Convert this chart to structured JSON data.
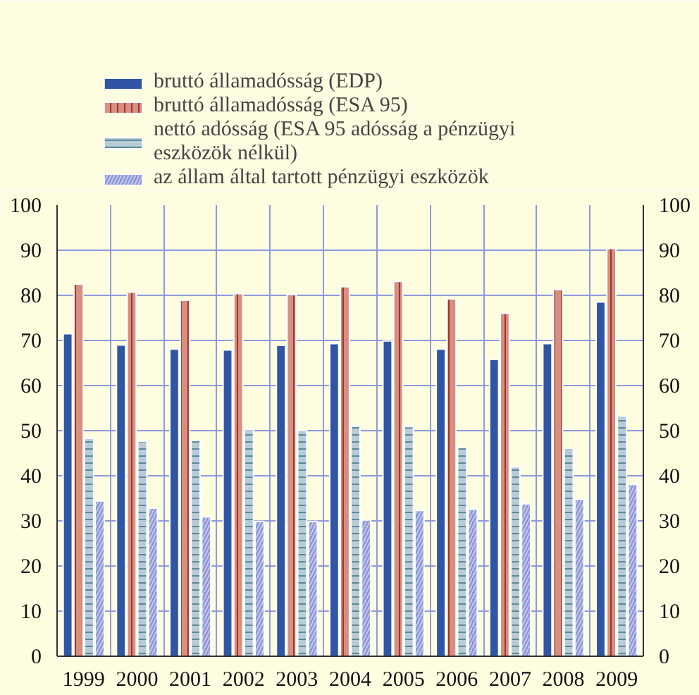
{
  "chart_data": {
    "type": "bar",
    "categories": [
      "1999",
      "2000",
      "2001",
      "2002",
      "2003",
      "2004",
      "2005",
      "2006",
      "2007",
      "2008",
      "2009"
    ],
    "series": [
      {
        "name": "bruttó államadósság (EDP)",
        "color": "#2f55a4",
        "values": [
          71.5,
          69.0,
          68.1,
          67.9,
          68.9,
          69.3,
          69.9,
          68.1,
          65.8,
          69.3,
          78.5
        ]
      },
      {
        "name": "bruttó államadósság (ESA 95)",
        "color": "#d49080",
        "values": [
          82.5,
          80.7,
          78.9,
          80.4,
          80.2,
          81.9,
          83.1,
          79.2,
          76.0,
          81.3,
          90.4
        ]
      },
      {
        "name": "nettó adósság (ESA 95 adósság a pénzügyi eszközök nélkül)",
        "color": "#b8ccd8",
        "values": [
          48.3,
          47.6,
          47.9,
          50.3,
          50.1,
          51.0,
          50.9,
          46.3,
          42.0,
          46.0,
          53.3
        ]
      },
      {
        "name": "az állam által tartott pénzügyi eszközök",
        "color": "#8c96d0",
        "values": [
          34.4,
          32.8,
          30.9,
          29.9,
          29.9,
          30.2,
          32.3,
          32.6,
          33.8,
          34.8,
          38.1
        ]
      }
    ],
    "ylim": [
      0,
      100
    ],
    "yticks": [
      0,
      10,
      20,
      30,
      40,
      50,
      60,
      70,
      80,
      90,
      100
    ],
    "y2lim": [
      0,
      100
    ],
    "y2ticks": [
      0,
      10,
      20,
      30,
      40,
      50,
      60,
      70,
      80,
      90,
      100
    ],
    "grid": true,
    "legend": "top"
  }
}
